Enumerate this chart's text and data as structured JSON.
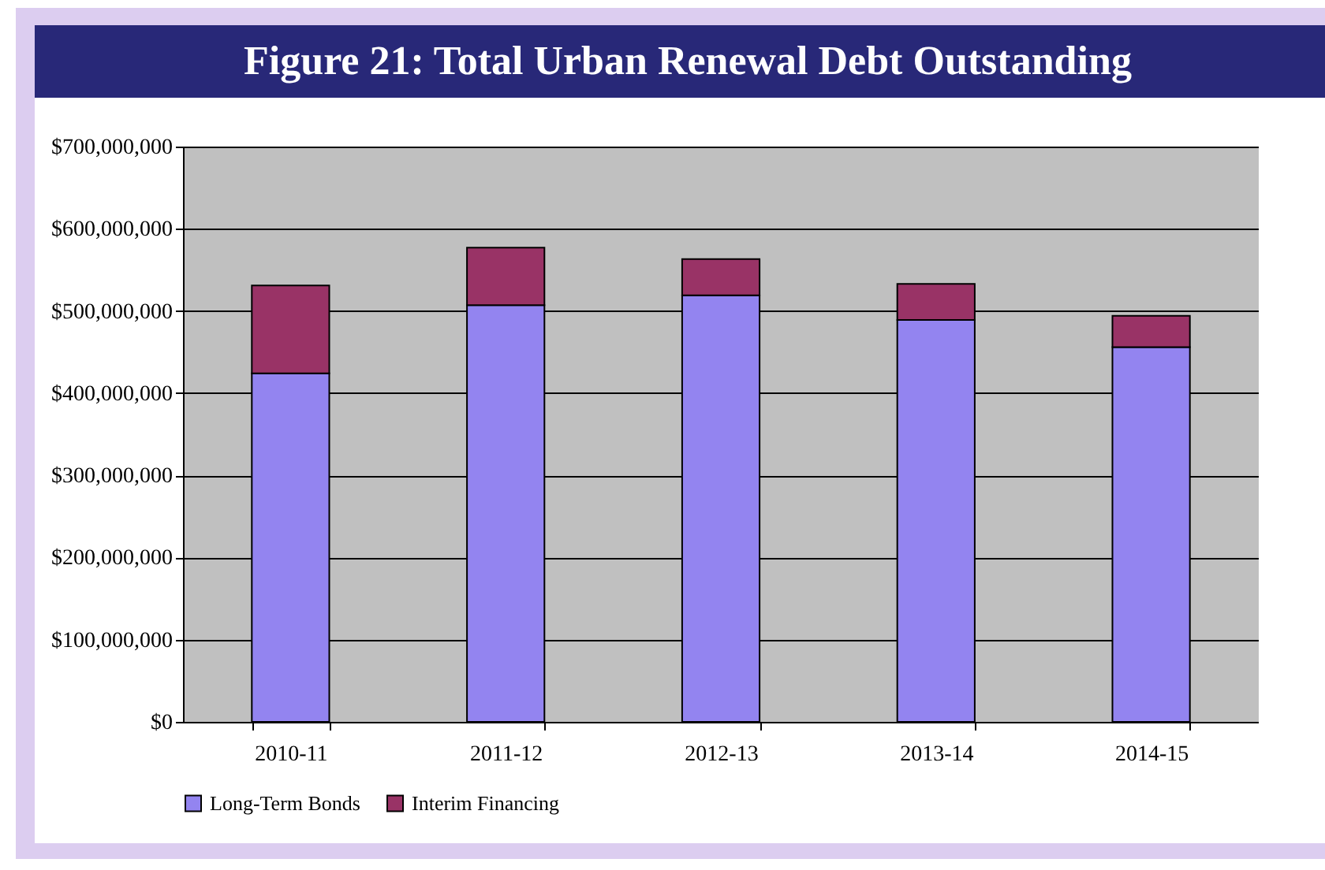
{
  "chart_data": {
    "type": "bar",
    "title": "Figure 21: Total Urban Renewal Debt Outstanding",
    "categories": [
      "2010-11",
      "2011-12",
      "2012-13",
      "2013-14",
      "2014-15"
    ],
    "stacked": true,
    "series": [
      {
        "name": "Long-Term Bonds",
        "color": "#9384f0",
        "values": [
          424000000,
          507000000,
          519000000,
          489000000,
          456000000
        ]
      },
      {
        "name": "Interim Financing",
        "color": "#993366",
        "values": [
          107000000,
          70000000,
          44000000,
          44000000,
          38000000
        ]
      }
    ],
    "ylim": [
      0,
      700000000
    ],
    "yticks": [
      {
        "value": 0,
        "label": "$0"
      },
      {
        "value": 100000000,
        "label": "$100,000,000"
      },
      {
        "value": 200000000,
        "label": "$200,000,000"
      },
      {
        "value": 300000000,
        "label": "$300,000,000"
      },
      {
        "value": 400000000,
        "label": "$400,000,000"
      },
      {
        "value": 500000000,
        "label": "$500,000,000"
      },
      {
        "value": 600000000,
        "label": "$600,000,000"
      },
      {
        "value": 700000000,
        "label": "$700,000,000"
      }
    ],
    "grid": "y",
    "legend": "bottom"
  }
}
